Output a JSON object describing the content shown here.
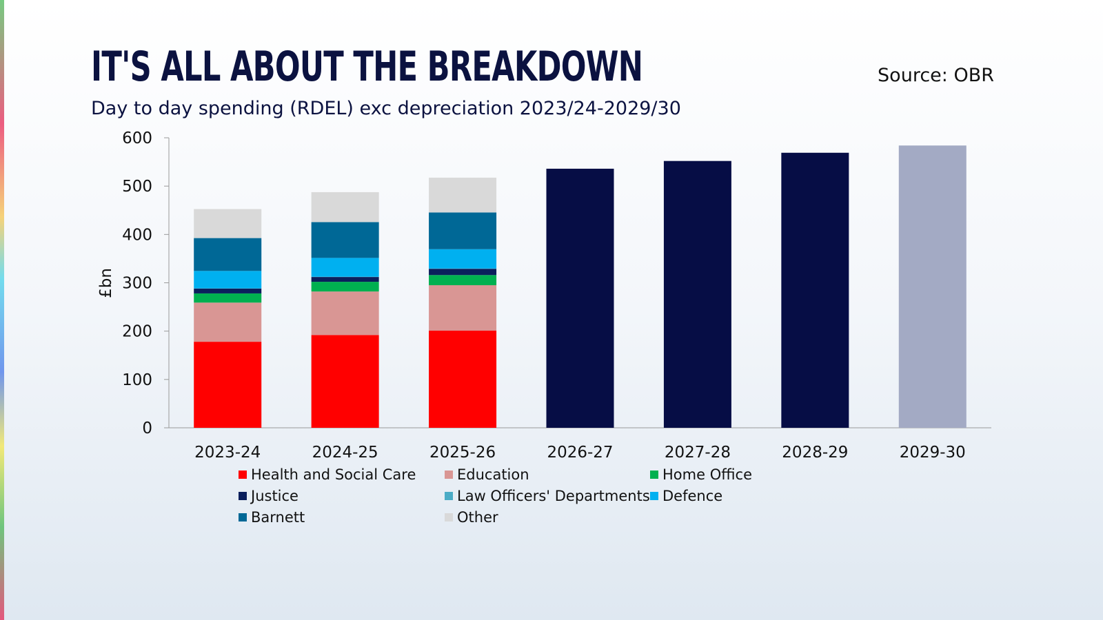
{
  "header": {
    "title": "IT'S ALL ABOUT THE BREAKDOWN",
    "subtitle": "Day to day spending (RDEL) exc depreciation 2023/24-2029/30",
    "source": "Source: OBR"
  },
  "chart_data": {
    "type": "bar",
    "stacked": true,
    "title": "IT'S ALL ABOUT THE BREAKDOWN",
    "subtitle": "Day to day spending (RDEL) exc depreciation 2023/24-2029/30",
    "ylabel": "£bn",
    "ylim": [
      0,
      600
    ],
    "yticks": [
      0,
      100,
      200,
      300,
      400,
      500,
      600
    ],
    "grid": false,
    "legend_placement": "bottom",
    "categories": [
      "2023-24",
      "2024-25",
      "2025-26",
      "2026-27",
      "2027-28",
      "2028-29",
      "2029-30"
    ],
    "series": [
      {
        "name": "Health and Social Care",
        "color": "#ff0000",
        "values": [
          178,
          192,
          201,
          null,
          null,
          null,
          null
        ]
      },
      {
        "name": "Education",
        "color": "#d99694",
        "values": [
          81,
          90,
          94,
          null,
          null,
          null,
          null
        ]
      },
      {
        "name": "Home Office",
        "color": "#00b050",
        "values": [
          19,
          20,
          21,
          null,
          null,
          null,
          null
        ]
      },
      {
        "name": "Justice",
        "color": "#0a1f5c",
        "values": [
          10,
          10,
          13,
          null,
          null,
          null,
          null
        ]
      },
      {
        "name": "Law Officers' Departments",
        "color": "#4bacc6",
        "values": [
          0.5,
          0.5,
          0.5,
          null,
          null,
          null,
          null
        ]
      },
      {
        "name": "Defence",
        "color": "#00b0f0",
        "values": [
          36,
          39,
          40,
          null,
          null,
          null,
          null
        ]
      },
      {
        "name": "Barnett",
        "color": "#006896",
        "values": [
          68,
          74,
          76,
          null,
          null,
          null,
          null
        ]
      },
      {
        "name": "Other",
        "color": "#d9d9d9",
        "values": [
          60,
          62,
          72,
          null,
          null,
          null,
          null
        ]
      }
    ],
    "totals_only": {
      "values": [
        null,
        null,
        null,
        536,
        552,
        569,
        584
      ],
      "colors": [
        "",
        "",
        "",
        "#060d45",
        "#060d45",
        "#060d45",
        "#a3aac4"
      ]
    }
  }
}
